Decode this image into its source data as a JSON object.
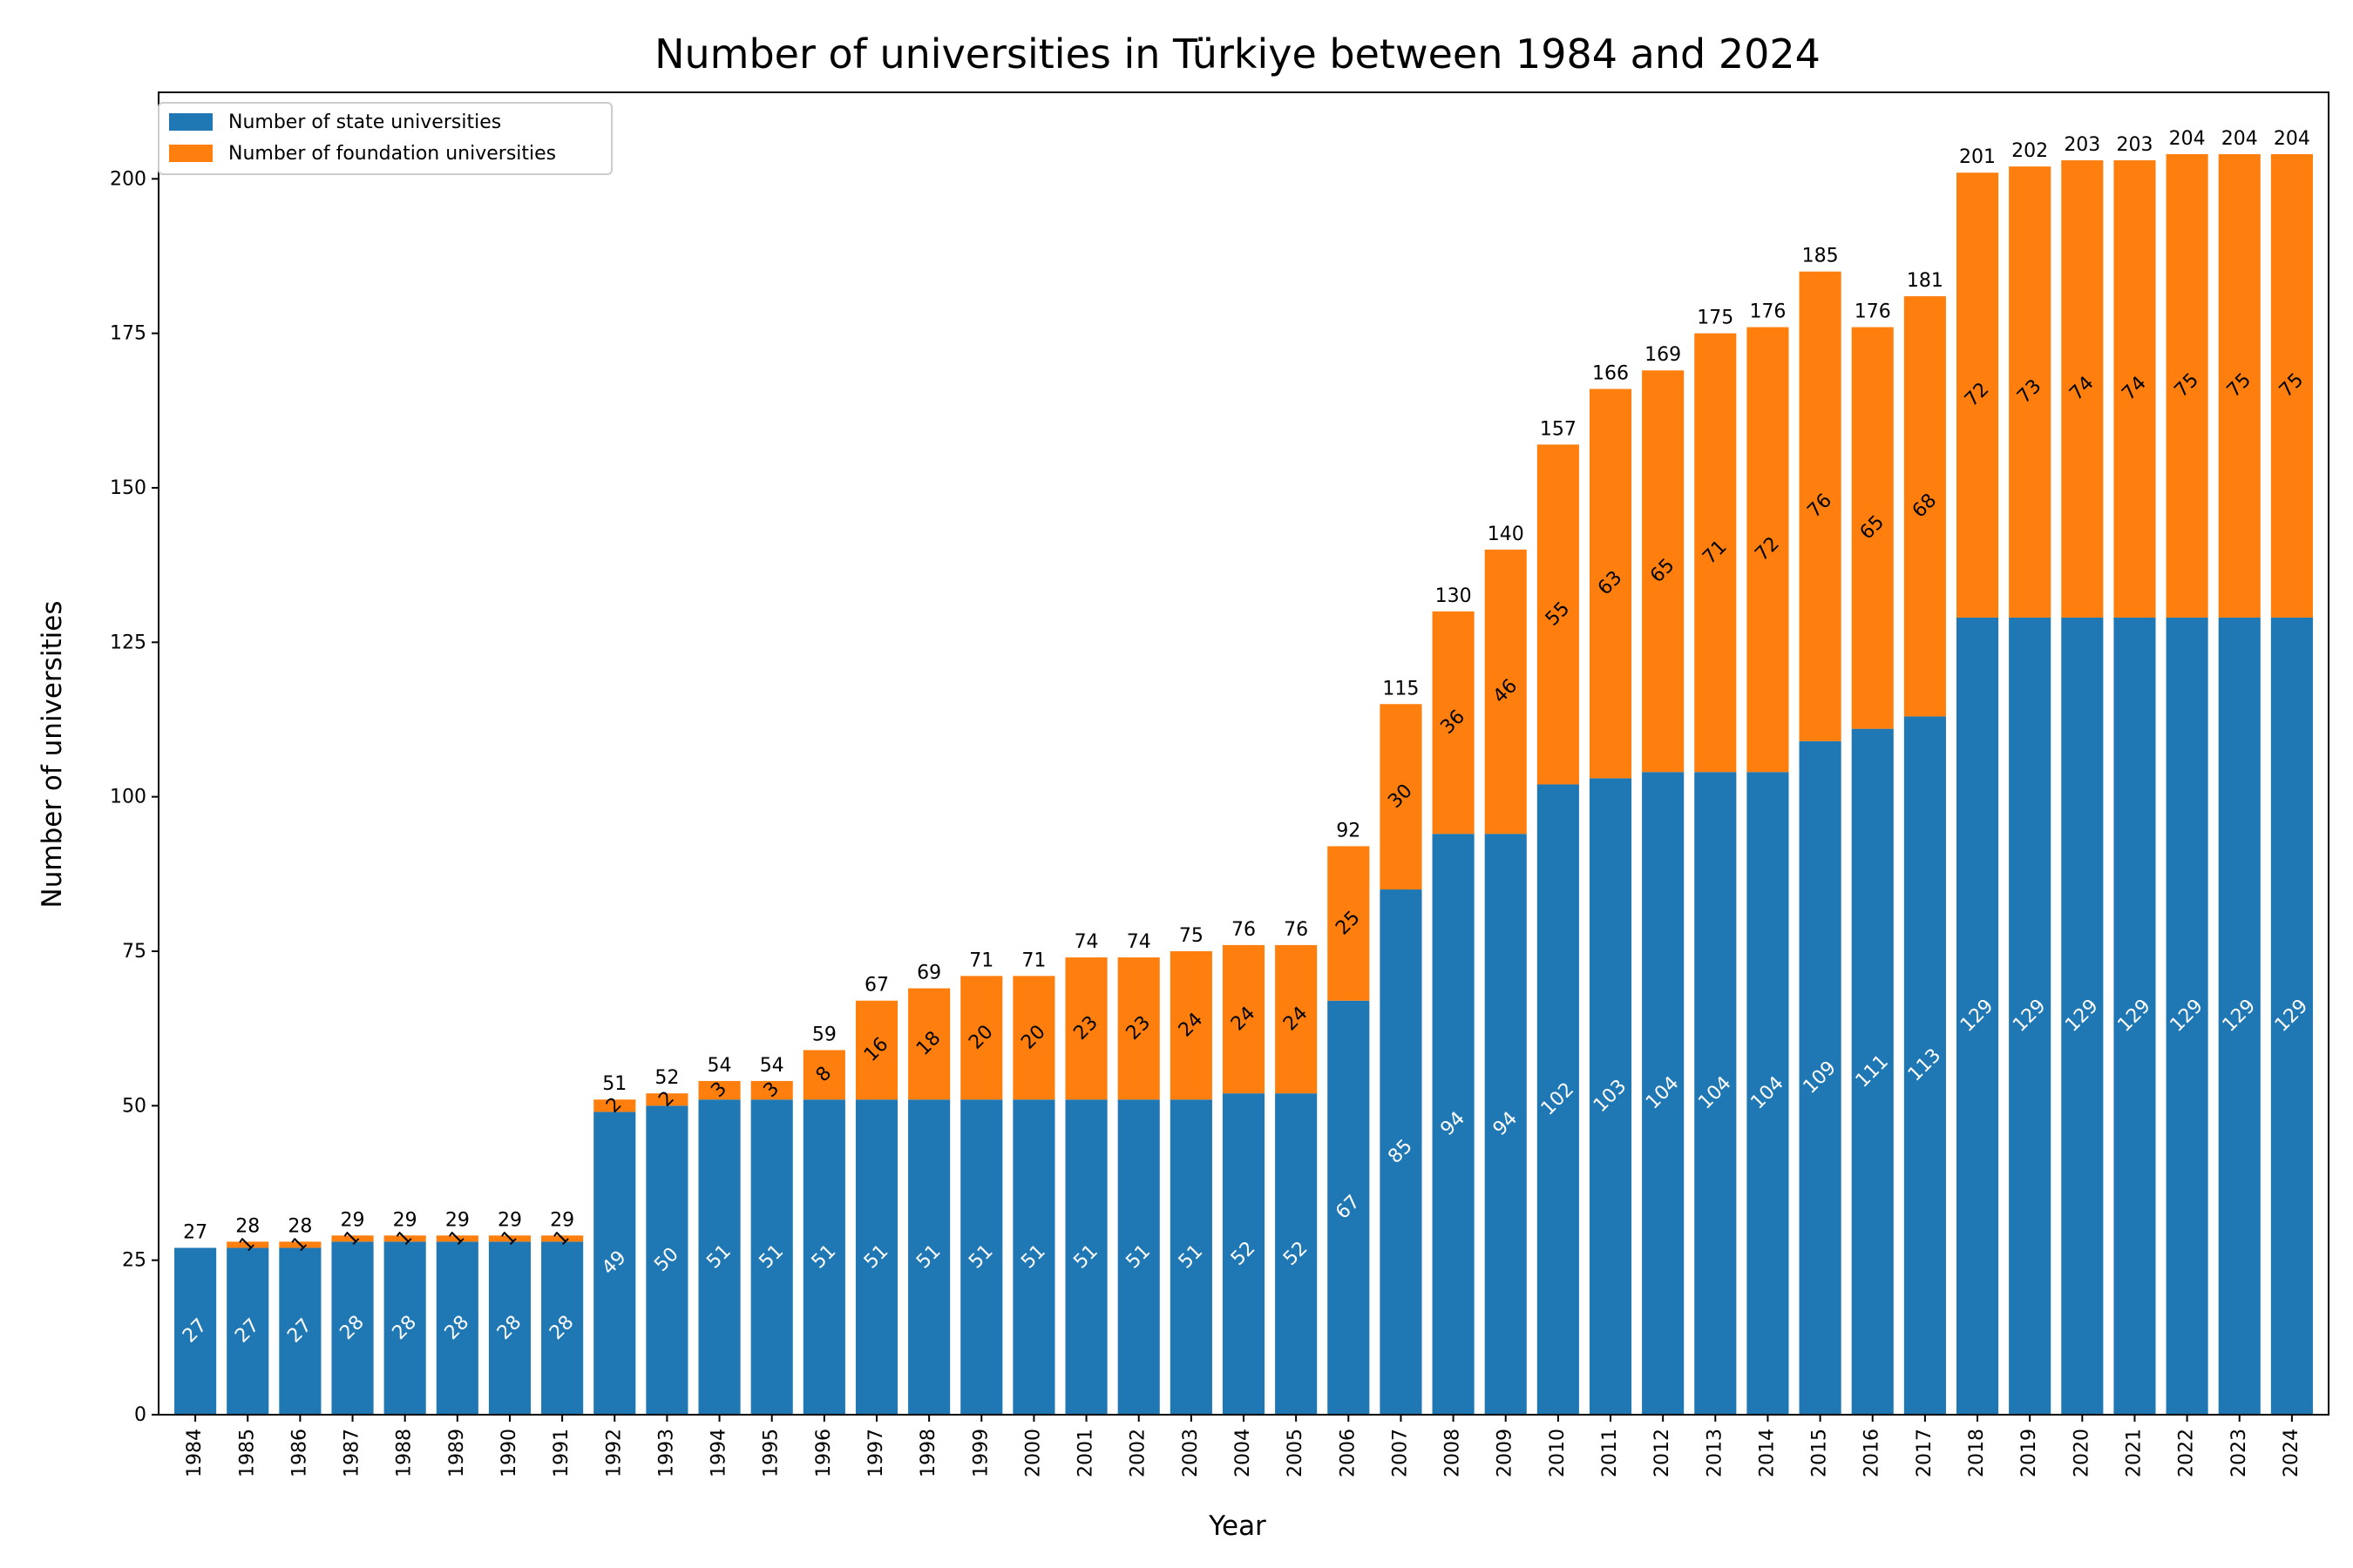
{
  "chart_data": {
    "type": "bar",
    "stacked": true,
    "title": "Number of universities in Türkiye between  1984 and 2024",
    "xlabel": "Year",
    "ylabel": "Number of universities",
    "ylim": [
      0,
      214
    ],
    "yticks": [
      0,
      25,
      50,
      75,
      100,
      125,
      150,
      175,
      200
    ],
    "grid": false,
    "legend_position": "top-left",
    "categories": [
      "1984",
      "1985",
      "1986",
      "1987",
      "1988",
      "1989",
      "1990",
      "1991",
      "1992",
      "1993",
      "1994",
      "1995",
      "1996",
      "1997",
      "1998",
      "1999",
      "2000",
      "2001",
      "2002",
      "2003",
      "2004",
      "2005",
      "2006",
      "2007",
      "2008",
      "2009",
      "2010",
      "2011",
      "2012",
      "2013",
      "2014",
      "2015",
      "2016",
      "2017",
      "2018",
      "2019",
      "2020",
      "2021",
      "2022",
      "2023",
      "2024"
    ],
    "series": [
      {
        "name": "Number of state universities",
        "color": "#1f77b4",
        "label_color": "#ffffff",
        "values": [
          27,
          27,
          27,
          28,
          28,
          28,
          28,
          28,
          49,
          50,
          51,
          51,
          51,
          51,
          51,
          51,
          51,
          51,
          51,
          51,
          52,
          52,
          67,
          85,
          94,
          94,
          102,
          103,
          104,
          104,
          104,
          109,
          111,
          113,
          129,
          129,
          129,
          129,
          129,
          129,
          129
        ]
      },
      {
        "name": "Number of foundation universities",
        "color": "#ff7f0e",
        "label_color": "#000000",
        "values": [
          0,
          1,
          1,
          1,
          1,
          1,
          1,
          1,
          2,
          2,
          3,
          3,
          8,
          16,
          18,
          20,
          20,
          23,
          23,
          24,
          24,
          24,
          25,
          30,
          36,
          46,
          55,
          63,
          65,
          71,
          72,
          76,
          65,
          68,
          72,
          73,
          74,
          74,
          75,
          75,
          75
        ]
      }
    ],
    "totals": [
      27,
      28,
      28,
      29,
      29,
      29,
      29,
      29,
      51,
      52,
      54,
      54,
      59,
      67,
      69,
      71,
      71,
      74,
      74,
      75,
      76,
      76,
      92,
      115,
      130,
      140,
      157,
      166,
      169,
      175,
      176,
      185,
      176,
      181,
      201,
      202,
      203,
      203,
      204,
      204,
      204
    ]
  }
}
